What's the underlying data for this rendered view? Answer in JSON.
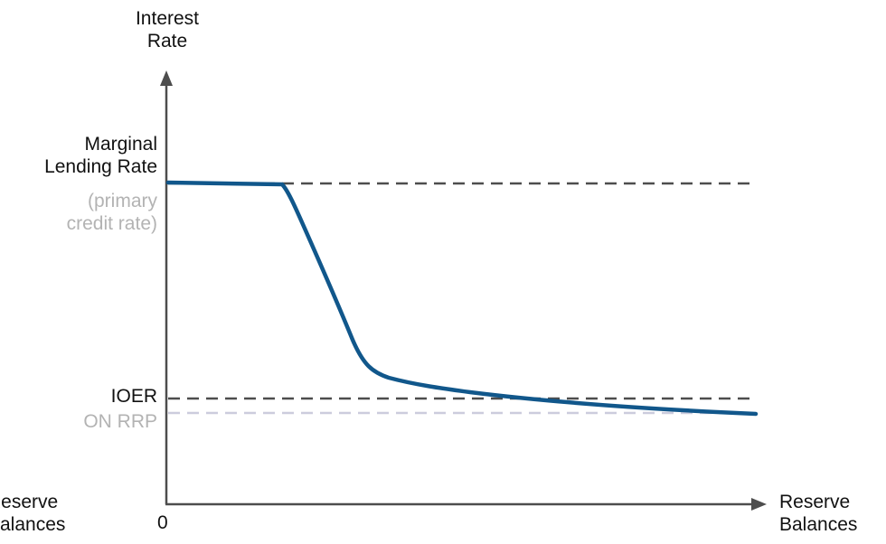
{
  "diagram": {
    "y_axis_label_line1": "Interest",
    "y_axis_label_line2": "Rate",
    "x_axis_label_line1": "Reserve",
    "x_axis_label_line2": "Balances",
    "left_clipped_label_line1": "Reserve",
    "left_clipped_label_line2": "Balances",
    "origin_label": "0",
    "marginal_rate_label_line1": "Marginal",
    "marginal_rate_label_line2": "Lending Rate",
    "marginal_rate_sublabel_line1": "(primary",
    "marginal_rate_sublabel_line2": "credit rate)",
    "ioer_label": "IOER",
    "on_rrp_label": "ON RRP",
    "colors": {
      "curve": "#11578b",
      "axis": "#4d4d4d",
      "dashed_dark": "#4d4d4d",
      "dashed_light": "#ccccdd",
      "text": "#111111",
      "text_muted": "#b3b3b3"
    }
  }
}
